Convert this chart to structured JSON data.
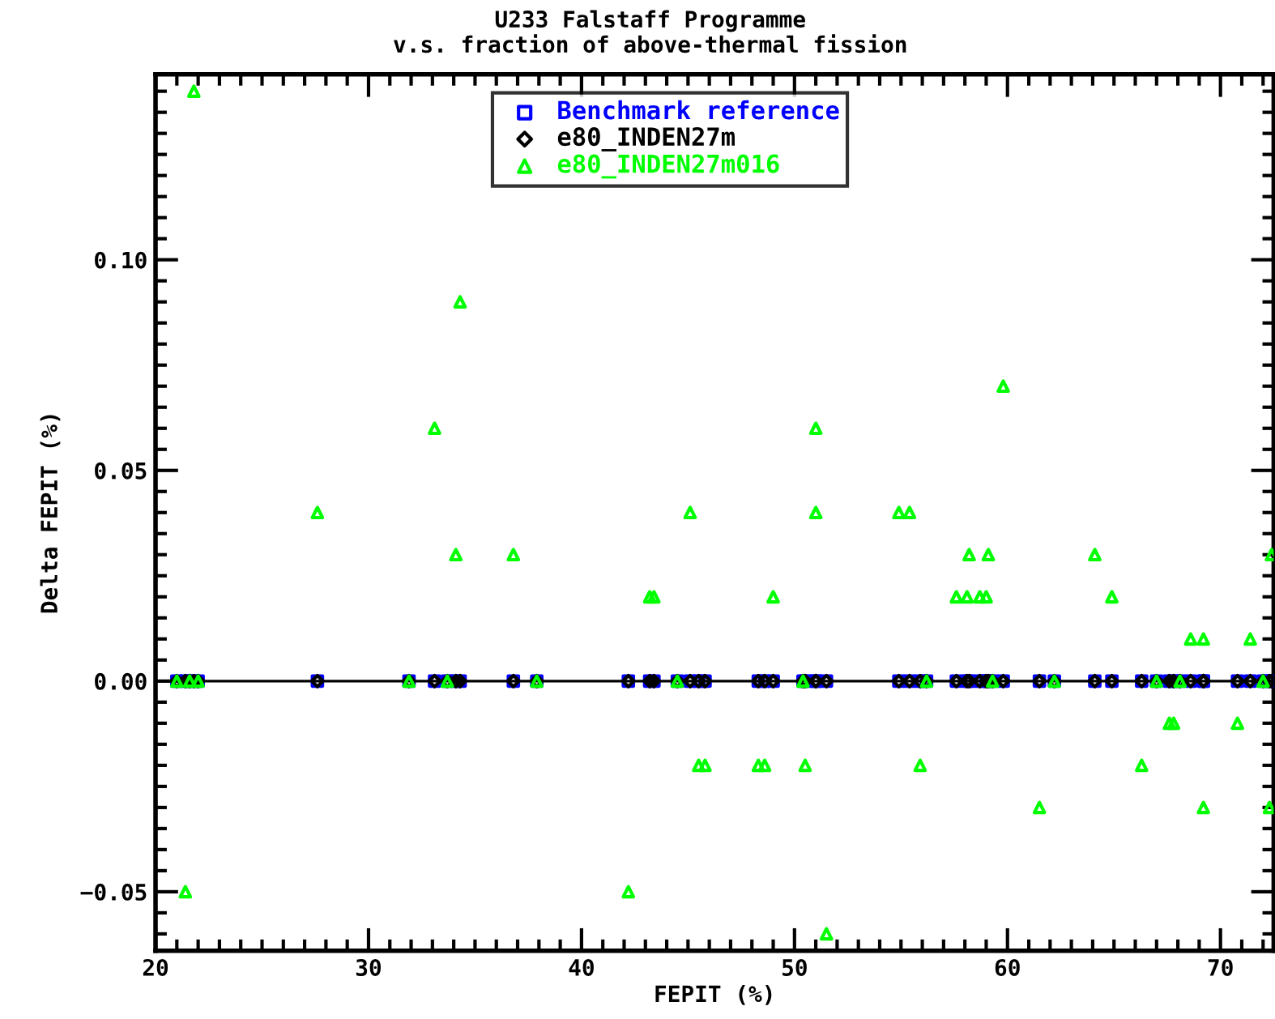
{
  "chart_data": {
    "type": "scatter",
    "title": "U233 Falstaff Programme",
    "subtitle": "v.s. fraction of above-thermal fission",
    "xlabel": "FEPIT (%)",
    "ylabel": "Delta FEPIT (%)",
    "x": [
      21.0,
      21.4,
      21.6,
      21.8,
      22.0,
      27.6,
      31.9,
      33.1,
      33.7,
      34.1,
      34.3,
      36.8,
      37.9,
      42.2,
      43.2,
      43.4,
      44.5,
      45.1,
      45.5,
      45.8,
      48.3,
      48.6,
      49.0,
      50.4,
      50.5,
      51.0,
      51.0,
      51.5,
      54.9,
      55.4,
      55.9,
      56.2,
      57.6,
      58.1,
      58.2,
      58.7,
      59.0,
      59.1,
      59.3,
      59.8,
      61.5,
      62.2,
      64.1,
      64.9,
      66.3,
      67.0,
      67.6,
      67.8,
      68.1,
      68.6,
      69.2,
      69.2,
      70.8,
      71.4,
      72.0,
      72.3,
      72.4
    ],
    "series": [
      {
        "name": "Benchmark reference",
        "color": "#0000ff",
        "marker": "square",
        "values": [
          0,
          0,
          0,
          0,
          0,
          0,
          0,
          0,
          0,
          0,
          0,
          0,
          0,
          0,
          0,
          0,
          0,
          0,
          0,
          0,
          0,
          0,
          0,
          0,
          0,
          0,
          0,
          0,
          0,
          0,
          0,
          0,
          0,
          0,
          0,
          0,
          0,
          0,
          0,
          0,
          0,
          0,
          0,
          0,
          0,
          0,
          0,
          0,
          0,
          0,
          0,
          0,
          0,
          0,
          0,
          0,
          0
        ]
      },
      {
        "name": "e80_INDEN27m",
        "color": "#000000",
        "marker": "diamond",
        "values": [
          0,
          0,
          0,
          0,
          0,
          0,
          0,
          0,
          0,
          0,
          0,
          0,
          0,
          0,
          0,
          0,
          0,
          0,
          0,
          0,
          0,
          0,
          0,
          0,
          0,
          0,
          0,
          0,
          0,
          0,
          0,
          0,
          0,
          0,
          0,
          0,
          0,
          0,
          0,
          0,
          0,
          0,
          0,
          0,
          0,
          0,
          0,
          0,
          0,
          0,
          0,
          0,
          0,
          0,
          0,
          0,
          0
        ]
      },
      {
        "name": "e80_INDEN27m016",
        "color": "#00ff00",
        "marker": "triangle",
        "values": [
          0.0,
          -0.05,
          0.0,
          0.14,
          0.0,
          0.04,
          0.0,
          0.06,
          0.0,
          0.03,
          0.09,
          0.03,
          0.0,
          -0.05,
          0.02,
          0.02,
          0.0,
          0.04,
          -0.02,
          -0.02,
          -0.02,
          -0.02,
          0.02,
          0.0,
          -0.02,
          0.06,
          0.04,
          -0.06,
          0.04,
          0.04,
          -0.02,
          0.0,
          0.02,
          0.02,
          0.03,
          0.02,
          0.02,
          0.03,
          0.0,
          0.07,
          -0.03,
          0.0,
          0.03,
          0.02,
          -0.02,
          0.0,
          -0.01,
          -0.01,
          0.0,
          0.01,
          0.01,
          -0.03,
          -0.01,
          0.01,
          0.0,
          -0.03,
          0.03
        ]
      }
    ],
    "xlim": [
      20,
      72.5
    ],
    "xticks": [
      20,
      30,
      40,
      50,
      60,
      70
    ],
    "ylim": [
      -0.064,
      0.144
    ],
    "yticks": [
      {
        "value": -0.05,
        "label": "−0.05"
      },
      {
        "value": 0,
        "label": "0.00"
      },
      {
        "value": 0.05,
        "label": "0.05"
      },
      {
        "value": 0.1,
        "label": "0.10"
      }
    ],
    "ref_lines": [
      {
        "axis": "y",
        "value": 0,
        "color": "#000000",
        "line_style": "solid"
      }
    ],
    "legend": "top",
    "grid": false
  }
}
